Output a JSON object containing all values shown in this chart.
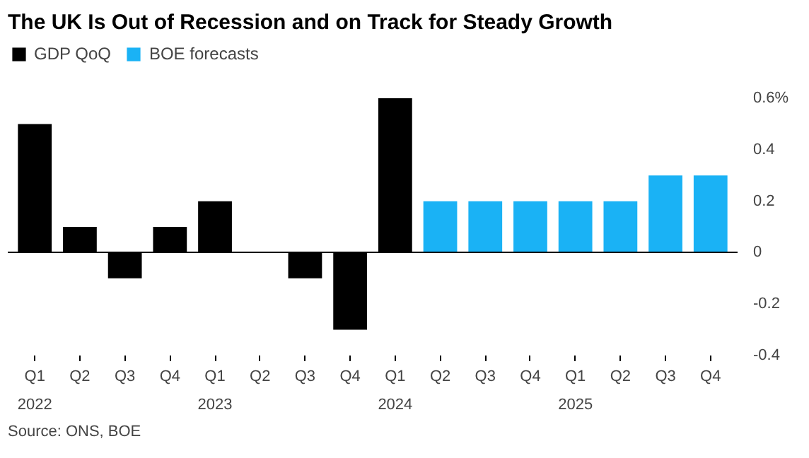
{
  "chart_data": {
    "type": "bar",
    "title": "The UK Is Out of Recession and on Track for Steady Growth",
    "categories": [
      "Q1\n2022",
      "Q2",
      "Q3",
      "Q4",
      "Q1\n2023",
      "Q2",
      "Q3",
      "Q4",
      "Q1\n2024",
      "Q2",
      "Q3",
      "Q4",
      "Q1\n2025",
      "Q2",
      "Q3",
      "Q4"
    ],
    "series": [
      {
        "name": "GDP QoQ",
        "color": "#000000",
        "values": [
          0.5,
          0.1,
          -0.1,
          0.1,
          0.2,
          0.0,
          -0.1,
          -0.3,
          0.6,
          null,
          null,
          null,
          null,
          null,
          null,
          null
        ]
      },
      {
        "name": "BOE forecasts",
        "color": "#1ab2f5",
        "values": [
          null,
          null,
          null,
          null,
          null,
          null,
          null,
          null,
          null,
          0.2,
          0.2,
          0.2,
          0.2,
          0.2,
          0.3,
          0.3
        ]
      }
    ],
    "ylim": [
      -0.4,
      0.82
    ],
    "yticks": [
      {
        "value": 0.6,
        "label": "0.6%"
      },
      0.4,
      0.2,
      0,
      -0.2,
      -0.4
    ],
    "ref_lines": [
      {
        "axis": "y",
        "value": 0,
        "color": "#000000"
      }
    ],
    "grid": false,
    "legend": "top left",
    "annotations": [
      "Source: ONS, BOE"
    ]
  }
}
